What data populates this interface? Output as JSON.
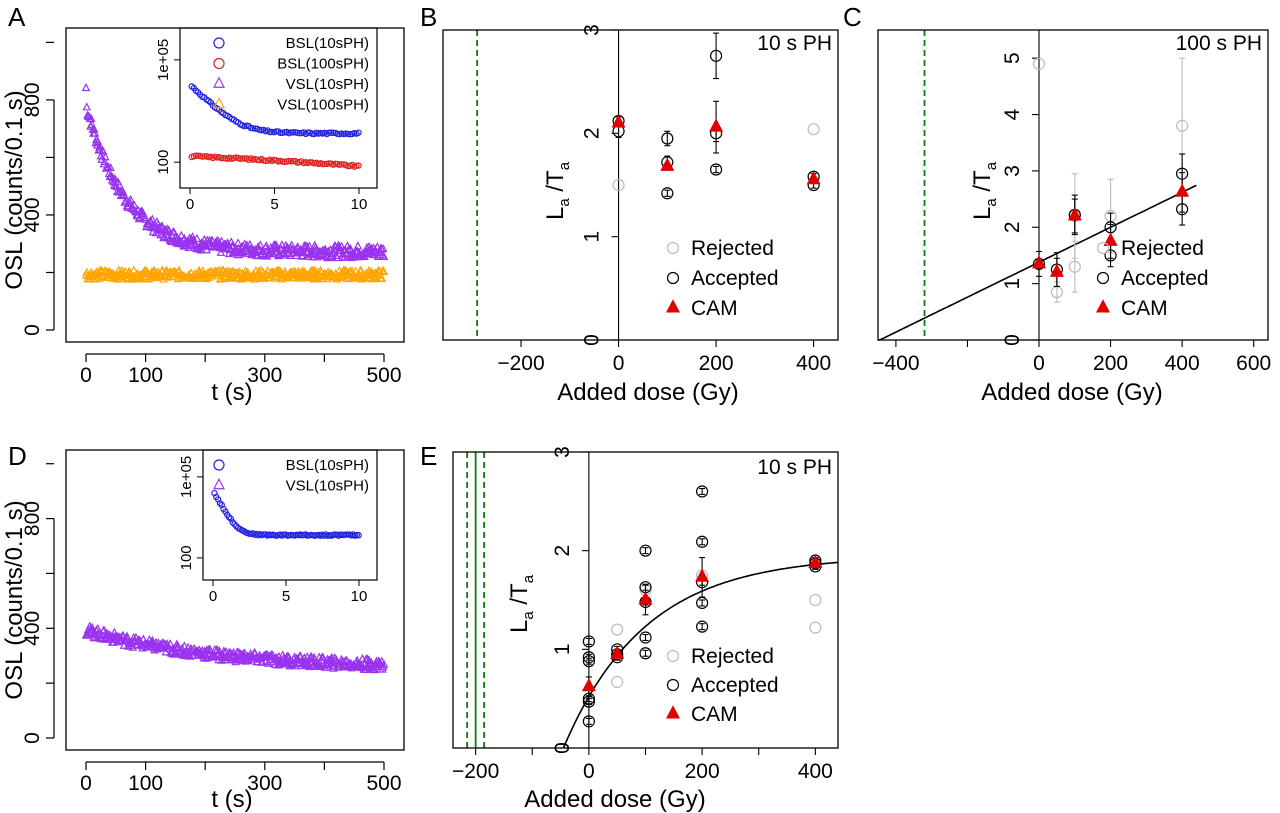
{
  "panels": [
    {
      "id": "A",
      "type": "decay",
      "label": "A",
      "xlabel": "t (s)",
      "ylabel": "OSL (counts/0.1 s)",
      "xlim": [
        0,
        500
      ],
      "ylim": [
        0,
        1050
      ],
      "xticks": [
        0,
        100,
        300,
        500
      ],
      "yticks": [
        0,
        400,
        800
      ],
      "series": [
        {
          "name": "VSL(10sPH)",
          "color": "#9933ee",
          "kind": "decay",
          "a": 270,
          "b": 510,
          "tau": 65,
          "noise": 22
        },
        {
          "name": "VSL(100sPH)",
          "color": "#ffa500",
          "kind": "flat",
          "a": 190,
          "noise": 16
        }
      ],
      "inset": {
        "xlim": [
          0,
          10
        ],
        "ylim_log": [
          30,
          500000
        ],
        "xticks": [
          0,
          5,
          10
        ],
        "yticks": [
          100,
          100000
        ],
        "ytick_labels": [
          "100",
          "1e+05"
        ],
        "series": [
          {
            "name": "BSL(10sPH)",
            "color": "#2222dd",
            "marker": "circle",
            "kind": "decay",
            "a": 700,
            "b": 18000,
            "tau": 0.9
          },
          {
            "name": "BSL(100sPH)",
            "color": "#dd2222",
            "marker": "circle",
            "kind": "linear",
            "start": 150,
            "end": 75
          },
          {
            "name": "VSL(10sPH)",
            "color": "#9933ee",
            "marker": "triangle",
            "kind": "none"
          },
          {
            "name": "VSL(100sPH)",
            "color": "#ffa500",
            "marker": "triangle",
            "kind": "none"
          }
        ]
      }
    },
    {
      "id": "B",
      "type": "dose",
      "label": "B",
      "xlabel": "Added dose (Gy)",
      "ylabel_main": "L",
      "ylabel_sub1": "a",
      "ylabel_mid": " /T",
      "ylabel_sub2": "a",
      "annotation": "10 s PH",
      "xlim": [
        -360,
        450
      ],
      "ylim": [
        0,
        3
      ],
      "xticks": [
        -200,
        0,
        200,
        400
      ],
      "yticks": [
        0,
        1,
        2,
        3
      ],
      "vlines": [
        -290
      ],
      "fit": null,
      "legend": [
        "Rejected",
        "Accepted",
        "CAM"
      ],
      "chart_data": {
        "type": "scatter",
        "rejected": [
          [
            0,
            1.5
          ],
          [
            400,
            2.04
          ]
        ],
        "accepted": [
          [
            0,
            2.02,
            0.06
          ],
          [
            0,
            2.12,
            0.04
          ],
          [
            100,
            1.95,
            0.07
          ],
          [
            100,
            1.72,
            0.06
          ],
          [
            100,
            1.42,
            0.03
          ],
          [
            200,
            2.75,
            0.22
          ],
          [
            200,
            2.0,
            0.08
          ],
          [
            200,
            1.65,
            0.03
          ],
          [
            400,
            1.58,
            0.03
          ],
          [
            400,
            1.5,
            0.03
          ]
        ],
        "cam": [
          [
            0,
            2.1
          ],
          [
            100,
            1.68
          ],
          [
            200,
            2.06,
            0.25
          ],
          [
            400,
            1.55
          ]
        ]
      }
    },
    {
      "id": "C",
      "type": "dose",
      "label": "C",
      "xlabel": "Added dose (Gy)",
      "ylabel_main": "L",
      "ylabel_sub1": "a",
      "ylabel_mid": " /T",
      "ylabel_sub2": "a",
      "annotation": "100 s PH",
      "xlim": [
        -450,
        640
      ],
      "ylim": [
        0,
        5.5
      ],
      "xticks": [
        -400,
        0,
        200,
        400,
        600
      ],
      "yticks": [
        0,
        1,
        2,
        3,
        4,
        5
      ],
      "vlines": [
        -320
      ],
      "fit": {
        "kind": "linear",
        "x0": -450,
        "x1": 440,
        "intercept": 1.38,
        "slope": 0.0031
      },
      "legend": [
        "Rejected",
        "Accepted",
        "CAM"
      ],
      "chart_data": {
        "type": "scatter",
        "rejected": [
          [
            0,
            4.9
          ],
          [
            50,
            0.85,
            0.18
          ],
          [
            100,
            1.3,
            0.45
          ],
          [
            100,
            2.2,
            0.75
          ],
          [
            200,
            2.2,
            0.65
          ],
          [
            400,
            3.8,
            1.2
          ]
        ],
        "accepted": [
          [
            0,
            1.35,
            0.22
          ],
          [
            50,
            1.25,
            0.3
          ],
          [
            100,
            2.22,
            0.35
          ],
          [
            200,
            2.0,
            0.25
          ],
          [
            200,
            1.5,
            0.2
          ],
          [
            400,
            2.95,
            0.35
          ],
          [
            400,
            2.32,
            0.28
          ]
        ],
        "cam": [
          [
            0,
            1.35
          ],
          [
            50,
            1.2,
            0.25
          ],
          [
            100,
            2.2,
            0.3
          ],
          [
            200,
            1.75,
            0.3
          ],
          [
            400,
            2.62,
            0.35
          ]
        ]
      }
    },
    {
      "id": "D",
      "type": "decay",
      "label": "D",
      "xlabel": "t (s)",
      "ylabel": "OSL (counts/0.1 s)",
      "xlim": [
        0,
        500
      ],
      "ylim": [
        0,
        1050
      ],
      "xticks": [
        0,
        100,
        300,
        500
      ],
      "yticks": [
        0,
        400,
        800
      ],
      "series": [
        {
          "name": "VSL(10sPH)",
          "color": "#9933ee",
          "kind": "decay",
          "a": 250,
          "b": 140,
          "tau": 220,
          "noise": 20
        }
      ],
      "inset": {
        "xlim": [
          0,
          10
        ],
        "ylim_log": [
          30,
          500000
        ],
        "xticks": [
          0,
          5,
          10
        ],
        "yticks": [
          100,
          100000
        ],
        "ytick_labels": [
          "100",
          "1e+05"
        ],
        "series": [
          {
            "name": "BSL(10sPH)",
            "color": "#2222dd",
            "marker": "circle",
            "kind": "decay",
            "a": 700,
            "b": 30000,
            "tau": 0.45
          },
          {
            "name": "VSL(10sPH)",
            "color": "#9933ee",
            "marker": "triangle",
            "kind": "none"
          }
        ]
      }
    },
    {
      "id": "E",
      "type": "dose",
      "label": "E",
      "xlabel": "Added dose (Gy)",
      "ylabel_main": "L",
      "ylabel_sub1": "a",
      "ylabel_mid": " /T",
      "ylabel_sub2": "a",
      "annotation": "10 s PH",
      "xlim": [
        -240,
        440
      ],
      "ylim": [
        0,
        3
      ],
      "xticks": [
        -200,
        0,
        200,
        400
      ],
      "yticks": [
        0,
        1,
        2,
        3
      ],
      "vlines": [
        -215,
        -185
      ],
      "vlines_solid": [
        -200
      ],
      "fit": {
        "kind": "exp",
        "x0": -45,
        "x1": 440,
        "A": 1.95,
        "D0": 145,
        "D_e": -45
      },
      "legend": [
        "Rejected",
        "Accepted",
        "CAM"
      ],
      "chart_data": {
        "type": "scatter",
        "rejected": [
          [
            50,
            1.2
          ],
          [
            50,
            0.67
          ],
          [
            100,
            1.6
          ],
          [
            200,
            1.75
          ],
          [
            400,
            1.5
          ],
          [
            400,
            1.22
          ]
        ],
        "accepted": [
          [
            0,
            1.08
          ],
          [
            0,
            0.92
          ],
          [
            0,
            0.88
          ],
          [
            0,
            0.5
          ],
          [
            0,
            0.47
          ],
          [
            0,
            0.27
          ],
          [
            50,
            1.0
          ],
          [
            50,
            0.95
          ],
          [
            50,
            0.92
          ],
          [
            100,
            2.0
          ],
          [
            100,
            1.63
          ],
          [
            100,
            1.48
          ],
          [
            100,
            1.12
          ],
          [
            100,
            0.96
          ],
          [
            200,
            2.6
          ],
          [
            200,
            2.09
          ],
          [
            200,
            1.68
          ],
          [
            200,
            1.47
          ],
          [
            200,
            1.23
          ],
          [
            400,
            1.9
          ],
          [
            400,
            1.87
          ],
          [
            400,
            1.84
          ]
        ],
        "cam": [
          [
            0,
            0.62,
            0.1
          ],
          [
            50,
            0.95
          ],
          [
            100,
            1.5,
            0.15
          ],
          [
            200,
            1.73,
            0.2
          ],
          [
            400,
            1.87
          ]
        ]
      }
    }
  ]
}
